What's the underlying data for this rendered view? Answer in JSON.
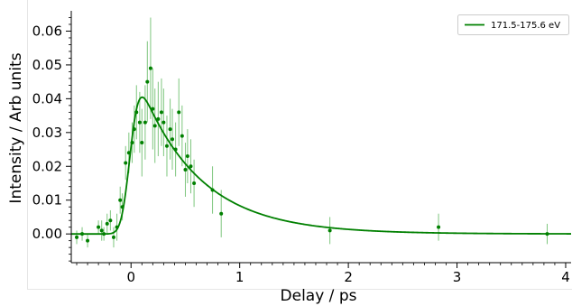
{
  "chart_data": {
    "type": "scatter",
    "xlabel": "Delay / ps",
    "ylabel": "Intensity / Arb units",
    "xlim": [
      -0.55,
      4.05
    ],
    "ylim": [
      -0.0085,
      0.066
    ],
    "x_ticks": [
      0,
      1,
      2,
      3,
      4
    ],
    "x_tick_labels": [
      "0",
      "1",
      "2",
      "3",
      "4"
    ],
    "y_ticks": [
      0.0,
      0.01,
      0.02,
      0.03,
      0.04,
      0.05,
      0.06
    ],
    "y_tick_labels": [
      "0.00",
      "0.01",
      "0.02",
      "0.03",
      "0.04",
      "0.05",
      "0.06"
    ],
    "grid": false,
    "legend_position": "top-right",
    "color": "#008000",
    "series": [
      {
        "name": "171.5-175.6 eV",
        "kind": "fit",
        "model": {
          "amplitude": 0.0515,
          "rise_center": 0.0,
          "rise_width": 0.09,
          "decay_tau": 0.55
        }
      },
      {
        "kind": "points",
        "points": [
          {
            "x": -0.5,
            "y": -0.001,
            "err": 0.002
          },
          {
            "x": -0.45,
            "y": 0.0,
            "err": 0.002
          },
          {
            "x": -0.4,
            "y": -0.002,
            "err": 0.002
          },
          {
            "x": -0.3,
            "y": 0.002,
            "err": 0.002
          },
          {
            "x": -0.27,
            "y": 0.001,
            "err": 0.003
          },
          {
            "x": -0.25,
            "y": 0.0,
            "err": 0.002
          },
          {
            "x": -0.22,
            "y": 0.003,
            "err": 0.003
          },
          {
            "x": -0.19,
            "y": 0.004,
            "err": 0.003
          },
          {
            "x": -0.16,
            "y": -0.001,
            "err": 0.003
          },
          {
            "x": -0.13,
            "y": 0.002,
            "err": 0.004
          },
          {
            "x": -0.1,
            "y": 0.01,
            "err": 0.004
          },
          {
            "x": -0.08,
            "y": 0.008,
            "err": 0.004
          },
          {
            "x": -0.05,
            "y": 0.021,
            "err": 0.005
          },
          {
            "x": -0.02,
            "y": 0.024,
            "err": 0.006
          },
          {
            "x": 0.01,
            "y": 0.027,
            "err": 0.006
          },
          {
            "x": 0.03,
            "y": 0.031,
            "err": 0.007
          },
          {
            "x": 0.05,
            "y": 0.036,
            "err": 0.008
          },
          {
            "x": 0.08,
            "y": 0.033,
            "err": 0.009
          },
          {
            "x": 0.1,
            "y": 0.027,
            "err": 0.01
          },
          {
            "x": 0.13,
            "y": 0.033,
            "err": 0.011
          },
          {
            "x": 0.15,
            "y": 0.045,
            "err": 0.012
          },
          {
            "x": 0.18,
            "y": 0.049,
            "err": 0.015
          },
          {
            "x": 0.2,
            "y": 0.037,
            "err": 0.012
          },
          {
            "x": 0.22,
            "y": 0.032,
            "err": 0.011
          },
          {
            "x": 0.25,
            "y": 0.034,
            "err": 0.011
          },
          {
            "x": 0.28,
            "y": 0.036,
            "err": 0.01
          },
          {
            "x": 0.3,
            "y": 0.033,
            "err": 0.01
          },
          {
            "x": 0.33,
            "y": 0.026,
            "err": 0.009
          },
          {
            "x": 0.36,
            "y": 0.031,
            "err": 0.009
          },
          {
            "x": 0.38,
            "y": 0.028,
            "err": 0.009
          },
          {
            "x": 0.41,
            "y": 0.025,
            "err": 0.008
          },
          {
            "x": 0.44,
            "y": 0.036,
            "err": 0.01
          },
          {
            "x": 0.47,
            "y": 0.029,
            "err": 0.009
          },
          {
            "x": 0.5,
            "y": 0.019,
            "err": 0.008
          },
          {
            "x": 0.52,
            "y": 0.023,
            "err": 0.008
          },
          {
            "x": 0.55,
            "y": 0.02,
            "err": 0.008
          },
          {
            "x": 0.58,
            "y": 0.015,
            "err": 0.007
          },
          {
            "x": 0.75,
            "y": 0.013,
            "err": 0.007
          },
          {
            "x": 0.83,
            "y": 0.006,
            "err": 0.007
          },
          {
            "x": 1.83,
            "y": 0.001,
            "err": 0.004
          },
          {
            "x": 2.83,
            "y": 0.002,
            "err": 0.004
          },
          {
            "x": 3.83,
            "y": 0.0,
            "err": 0.003
          }
        ]
      }
    ]
  }
}
